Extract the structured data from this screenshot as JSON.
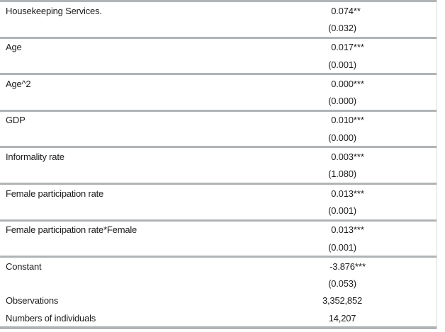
{
  "colors": {
    "background": "#ffffff",
    "text": "#1b1b1b",
    "separator": "#b1b4b6",
    "right_border": "#dcdcdc"
  },
  "table": {
    "rows": [
      {
        "label": "Housekeeping Services.",
        "value": "0.074",
        "stars": "**",
        "group_end": false
      },
      {
        "label": "",
        "value": "(0.032)",
        "stars": "",
        "group_end": true
      },
      {
        "label": "Age",
        "value": "0.017",
        "stars": "***",
        "group_end": false
      },
      {
        "label": "",
        "value": "(0.001)",
        "stars": "",
        "group_end": true
      },
      {
        "label": "Age^2",
        "value": "0.000",
        "stars": "***",
        "group_end": false
      },
      {
        "label": "",
        "value": "(0.000)",
        "stars": "",
        "group_end": true
      },
      {
        "label": "GDP",
        "value": "0.010",
        "stars": "***",
        "group_end": false
      },
      {
        "label": "",
        "value": "(0.000)",
        "stars": "",
        "group_end": true
      },
      {
        "label": "Informality rate",
        "value": "0.003",
        "stars": "***",
        "group_end": false
      },
      {
        "label": "",
        "value": "(1.080)",
        "stars": "",
        "group_end": true
      },
      {
        "label": "Female participation rate",
        "value": "0.013",
        "stars": "***",
        "group_end": false
      },
      {
        "label": "",
        "value": "(0.001)",
        "stars": "",
        "group_end": true
      },
      {
        "label": "Female participation rate*Female",
        "value": "0.013",
        "stars": "***",
        "group_end": false
      },
      {
        "label": "",
        "value": "(0.001)",
        "stars": "",
        "group_end": true
      },
      {
        "label": "Constant",
        "value": "-3.876",
        "stars": "***",
        "group_end": false
      },
      {
        "label": "",
        "value": "(0.053)",
        "stars": "",
        "group_end": false
      },
      {
        "label": "Observations",
        "value": "3,352,852",
        "stars": "",
        "group_end": false
      },
      {
        "label": "Numbers of individuals",
        "value": "14,207",
        "stars": "",
        "group_end": false
      }
    ]
  }
}
